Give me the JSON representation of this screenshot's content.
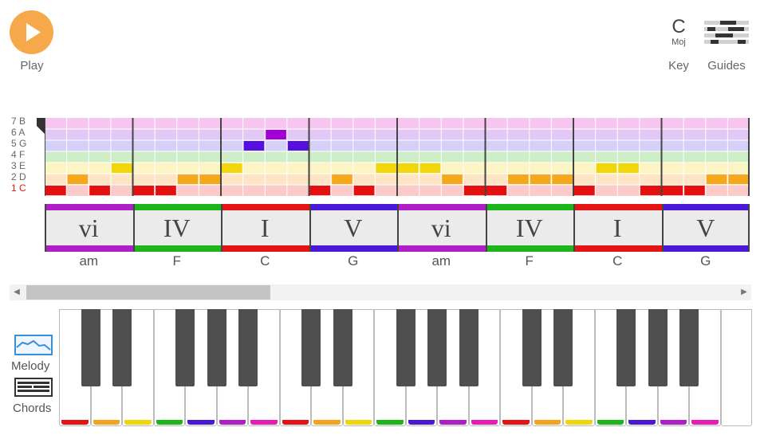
{
  "toolbar": {
    "play_label": "Play",
    "play_icon": "play-icon",
    "key_letter": "C",
    "key_mode": "Moj",
    "key_label": "Key",
    "guides_label": "Guides",
    "guides_icon": "piano-keys-icon",
    "accent_color": "#f5a94a"
  },
  "grid": {
    "row_labels": [
      {
        "num": "7",
        "note": "B"
      },
      {
        "num": "6",
        "note": "A"
      },
      {
        "num": "5",
        "note": "G"
      },
      {
        "num": "4",
        "note": "F"
      },
      {
        "num": "3",
        "note": "E"
      },
      {
        "num": "2",
        "note": "D"
      },
      {
        "num": "1",
        "note": "C"
      }
    ],
    "row_colors": [
      "#f7c6f0",
      "#e2c8f4",
      "#d4d0f8",
      "#cdeec6",
      "#fcf4c2",
      "#fde5c4",
      "#fbcaca"
    ],
    "note_colors": [
      "#c300c8",
      "#a300d8",
      "#5510e0",
      "#11b51a",
      "#f2d60c",
      "#f5a81c",
      "#e60f0f"
    ],
    "measures": 8,
    "steps_per_measure": 4,
    "notes": [
      {
        "measure": 0,
        "step": 0,
        "degree": 1
      },
      {
        "measure": 0,
        "step": 1,
        "degree": 2
      },
      {
        "measure": 0,
        "step": 2,
        "degree": 1
      },
      {
        "measure": 0,
        "step": 3,
        "degree": 3
      },
      {
        "measure": 1,
        "step": 0,
        "degree": 1
      },
      {
        "measure": 1,
        "step": 1,
        "degree": 1
      },
      {
        "measure": 1,
        "step": 2,
        "degree": 2
      },
      {
        "measure": 1,
        "step": 3,
        "degree": 2
      },
      {
        "measure": 2,
        "step": 0,
        "degree": 3
      },
      {
        "measure": 2,
        "step": 1,
        "degree": 5
      },
      {
        "measure": 2,
        "step": 2,
        "degree": 6
      },
      {
        "measure": 2,
        "step": 3,
        "degree": 5
      },
      {
        "measure": 3,
        "step": 0,
        "degree": 1
      },
      {
        "measure": 3,
        "step": 1,
        "degree": 2
      },
      {
        "measure": 3,
        "step": 2,
        "degree": 1
      },
      {
        "measure": 3,
        "step": 3,
        "degree": 3
      },
      {
        "measure": 4,
        "step": 0,
        "degree": 3
      },
      {
        "measure": 4,
        "step": 1,
        "degree": 3
      },
      {
        "measure": 4,
        "step": 2,
        "degree": 2
      },
      {
        "measure": 4,
        "step": 3,
        "degree": 1
      },
      {
        "measure": 5,
        "step": 0,
        "degree": 1
      },
      {
        "measure": 5,
        "step": 1,
        "degree": 2
      },
      {
        "measure": 5,
        "step": 2,
        "degree": 2
      },
      {
        "measure": 5,
        "step": 3,
        "degree": 2
      },
      {
        "measure": 6,
        "step": 0,
        "degree": 1
      },
      {
        "measure": 6,
        "step": 1,
        "degree": 3
      },
      {
        "measure": 6,
        "step": 2,
        "degree": 3
      },
      {
        "measure": 6,
        "step": 3,
        "degree": 1
      },
      {
        "measure": 7,
        "step": 0,
        "degree": 1
      },
      {
        "measure": 7,
        "step": 1,
        "degree": 1
      },
      {
        "measure": 7,
        "step": 2,
        "degree": 2
      },
      {
        "measure": 7,
        "step": 3,
        "degree": 2
      }
    ]
  },
  "chords": [
    {
      "numeral": "vi",
      "name": "am",
      "color": "#b01ec8"
    },
    {
      "numeral": "IV",
      "name": "F",
      "color": "#1cb51a"
    },
    {
      "numeral": "I",
      "name": "C",
      "color": "#e41414"
    },
    {
      "numeral": "V",
      "name": "G",
      "color": "#4a19d8"
    },
    {
      "numeral": "vi",
      "name": "am",
      "color": "#b01ec8"
    },
    {
      "numeral": "IV",
      "name": "F",
      "color": "#1cb51a"
    },
    {
      "numeral": "I",
      "name": "C",
      "color": "#e41414"
    },
    {
      "numeral": "V",
      "name": "G",
      "color": "#4a19d8"
    }
  ],
  "scrollbar": {
    "left_arrow": "◀",
    "right_arrow": "▶",
    "position": 0.3
  },
  "side": {
    "melody_label": "Melody",
    "melody_icon": "melody-wave-icon",
    "chords_label": "Chords",
    "chords_icon": "chords-bars-icon"
  },
  "keyboard": {
    "white_key_colors": [
      "#e41414",
      "#f5a21c",
      "#f2d60c",
      "#1cb51a",
      "#4a19d8",
      "#b01ec8",
      "#e81cb4"
    ],
    "white_keys": 22,
    "black_key_color": "#4f4f4f"
  }
}
